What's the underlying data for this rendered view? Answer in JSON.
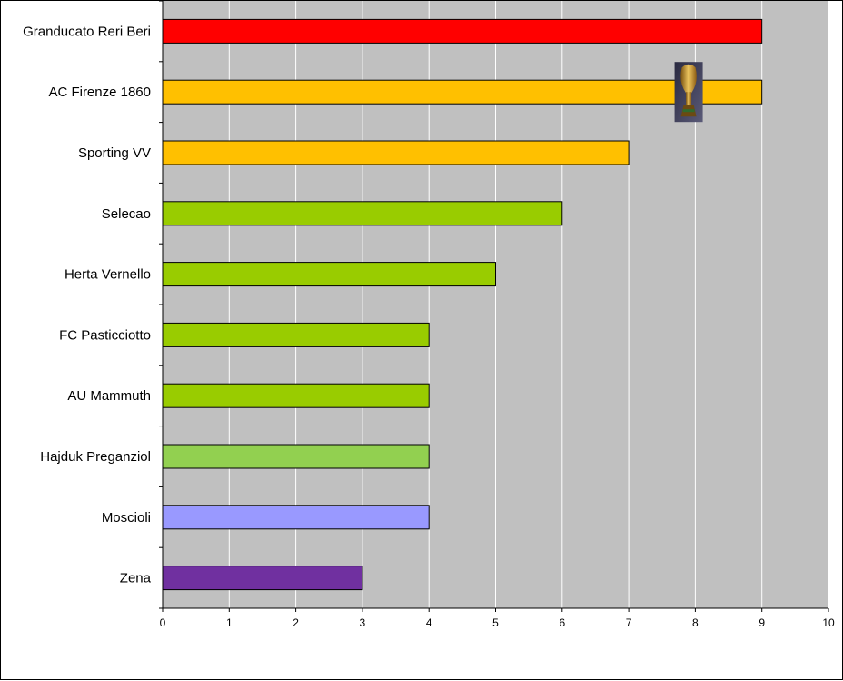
{
  "chart_data": {
    "type": "bar",
    "orientation": "horizontal",
    "categories": [
      "Granducato Reri Beri",
      "AC Firenze 1860",
      "Sporting VV",
      "Selecao",
      "Herta Vernello",
      "FC Pasticciotto",
      "AU Mammuth",
      "Hajduk Preganziol",
      "Moscioli",
      "Zena"
    ],
    "values": [
      9,
      9,
      7,
      6,
      5,
      4,
      4,
      4,
      4,
      3
    ],
    "bar_colors": [
      "#ff0000",
      "#ffc000",
      "#ffc000",
      "#99cc00",
      "#99cc00",
      "#99cc00",
      "#99cc00",
      "#92d050",
      "#9999ff",
      "#7030a0"
    ],
    "xlim": [
      0,
      10
    ],
    "x_ticks": [
      "0",
      "1",
      "2",
      "3",
      "4",
      "5",
      "6",
      "7",
      "8",
      "9",
      "10"
    ],
    "grid": "vertical",
    "plot_background": "#c0c0c0",
    "gridline_color": "#ffffff",
    "trophy_icon": {
      "name": "trophy-icon",
      "on_category": "AC Firenze 1860",
      "at_value": 7.9
    }
  }
}
